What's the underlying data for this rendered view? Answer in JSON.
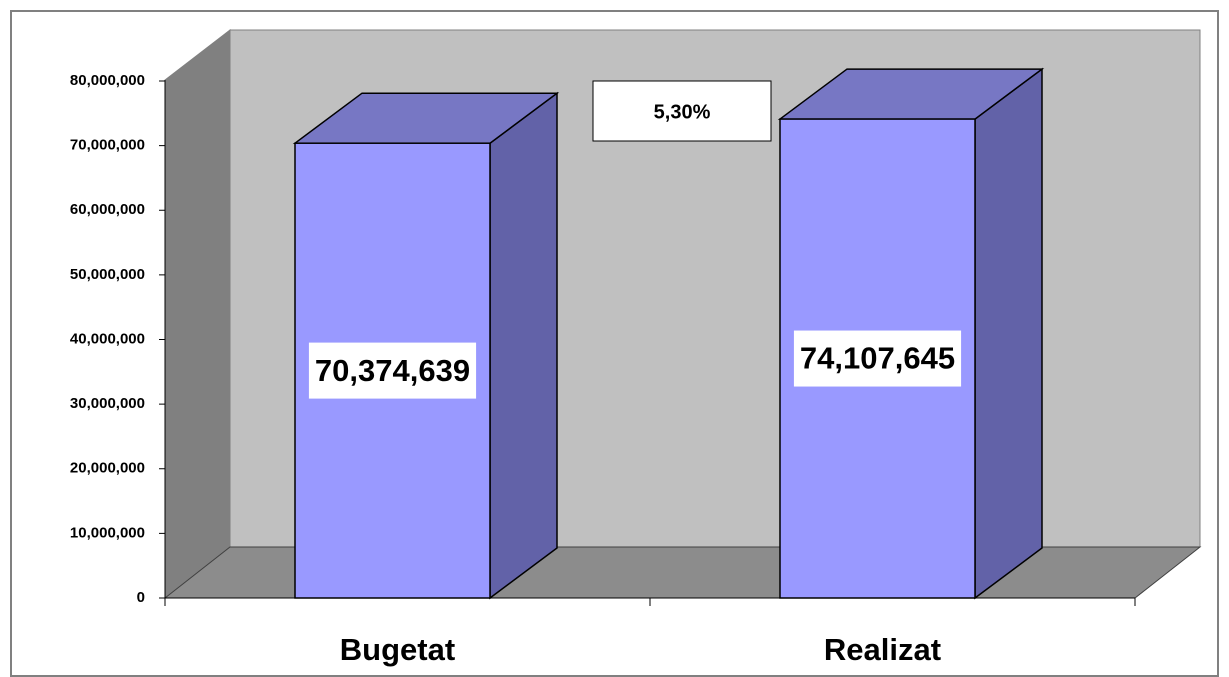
{
  "chart_data": {
    "type": "bar3d",
    "categories": [
      "Bugetat",
      "Realizat"
    ],
    "values": [
      70374639,
      74107645
    ],
    "value_labels": [
      "70,374,639",
      "74,107,645"
    ],
    "color": "#9999ff",
    "ylim": [
      0,
      80000000
    ],
    "yticks": [
      {
        "value": 0,
        "label": "0"
      },
      {
        "value": 10000000,
        "label": "10,000,000"
      },
      {
        "value": 20000000,
        "label": "20,000,000"
      },
      {
        "value": 30000000,
        "label": "30,000,000"
      },
      {
        "value": 40000000,
        "label": "40,000,000"
      },
      {
        "value": 50000000,
        "label": "50,000,000"
      },
      {
        "value": 60000000,
        "label": "60,000,000"
      },
      {
        "value": 70000000,
        "label": "70,000,000"
      },
      {
        "value": 80000000,
        "label": "80,000,000"
      }
    ],
    "annotation": "5,30%"
  }
}
